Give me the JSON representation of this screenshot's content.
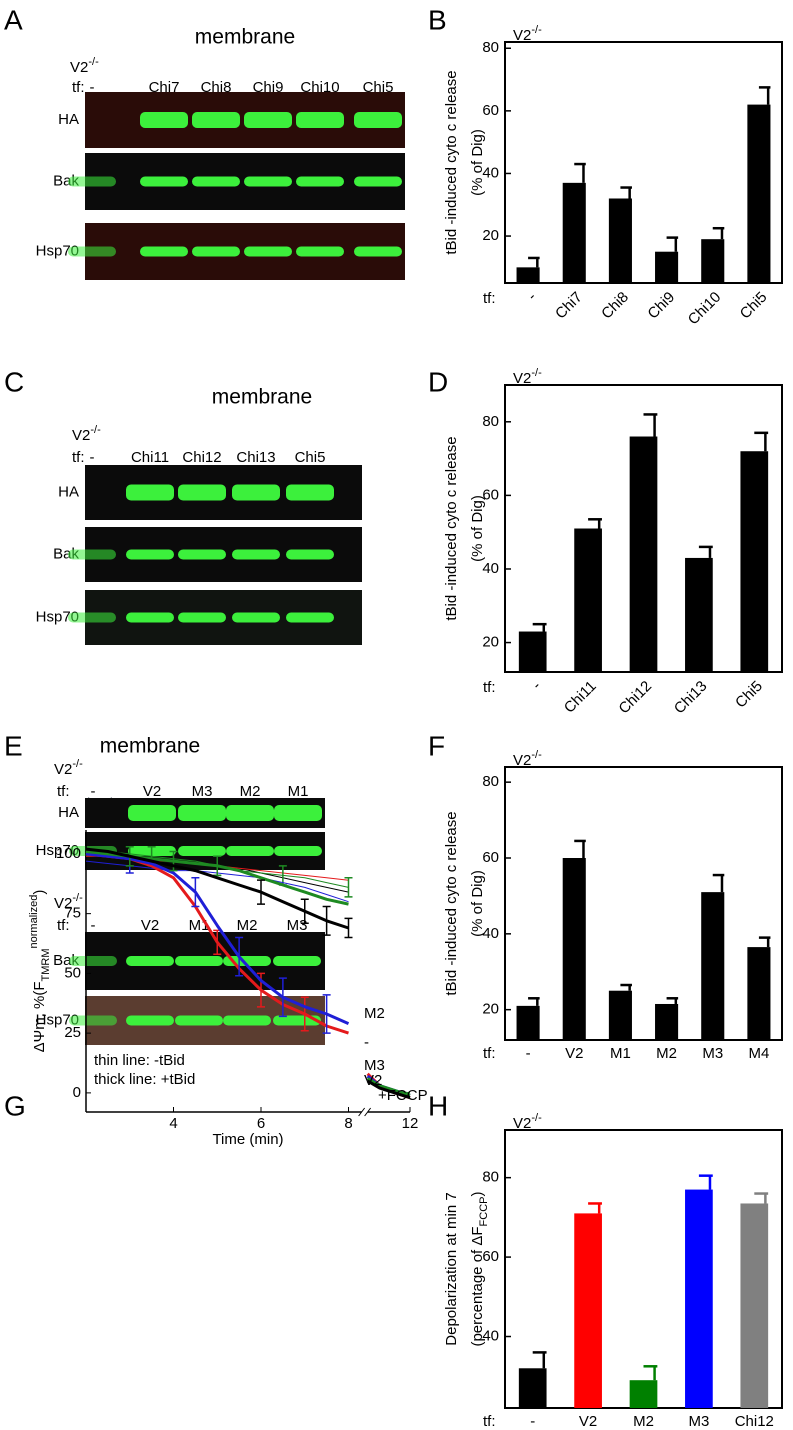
{
  "blots": [
    {
      "label": "A",
      "title": "membrane",
      "groups": [
        {
          "genotype": {
            "base": "V2",
            "sup": "-/-"
          },
          "tf": "tf:",
          "lanes": [
            "-",
            "Chi7",
            "Chi8",
            "Chi9",
            "Chi10",
            "Chi5"
          ],
          "rows": [
            "HA",
            "Bak",
            "Hsp70"
          ]
        }
      ]
    },
    {
      "label": "C",
      "title": "membrane",
      "groups": [
        {
          "genotype": {
            "base": "V2",
            "sup": "-/-"
          },
          "tf": "tf:",
          "lanes": [
            "-",
            "Chi11",
            "Chi12",
            "Chi13",
            "Chi5"
          ],
          "rows": [
            "HA",
            "Bak",
            "Hsp70"
          ]
        }
      ]
    },
    {
      "label": "E",
      "title": "membrane",
      "groups": [
        {
          "genotype": {
            "base": "V2",
            "sup": "-/-"
          },
          "tf": "tf:",
          "lanes": [
            "-",
            "V2",
            "M3",
            "M2",
            "M1"
          ],
          "rows": [
            "HA",
            "Hsp70"
          ]
        },
        {
          "genotype": {
            "base": "V2",
            "sup": "-/-"
          },
          "tf": "tf:",
          "lanes": [
            "-",
            "V2",
            "M1",
            "M2",
            "M3"
          ],
          "rows": [
            "Bak",
            "Hsp70"
          ]
        }
      ]
    }
  ],
  "chart_data": [
    {
      "type": "bar",
      "label": "B",
      "genotype": {
        "base": "V2",
        "sup": "-/-"
      },
      "ylabel": [
        "tBid -induced cyto c release",
        "(% of Dig)"
      ],
      "xlabel": "tf:",
      "xtick_rotation": 45,
      "categories": [
        "-",
        "Chi7",
        "Chi8",
        "Chi9",
        "Chi10",
        "Chi5"
      ],
      "values": [
        10,
        37,
        32,
        15,
        19,
        62
      ],
      "errors": [
        3,
        6,
        3.5,
        4.5,
        3.5,
        5.5
      ],
      "color": "#000000",
      "ylim": [
        5,
        82
      ],
      "yticks": [
        20,
        40,
        60,
        80
      ]
    },
    {
      "type": "bar",
      "label": "D",
      "genotype": {
        "base": "V2",
        "sup": "-/-"
      },
      "ylabel": [
        "tBid -induced cyto c release",
        "(% of Dig)"
      ],
      "xlabel": "tf:",
      "xtick_rotation": 45,
      "categories": [
        "-",
        "Chi11",
        "Chi12",
        "Chi13",
        "Chi5"
      ],
      "values": [
        23,
        51,
        76,
        43,
        72
      ],
      "errors": [
        2,
        2.5,
        6,
        3,
        5
      ],
      "color": "#000000",
      "ylim": [
        12,
        90
      ],
      "yticks": [
        20,
        40,
        60,
        80
      ]
    },
    {
      "type": "bar",
      "label": "F",
      "genotype": {
        "base": "V2",
        "sup": "-/-"
      },
      "ylabel": [
        "tBid -induced cyto c release",
        "(% of Dig)"
      ],
      "xlabel": "tf:",
      "xtick_rotation": 0,
      "categories": [
        "-",
        "V2",
        "M1",
        "M2",
        "M3",
        "M4"
      ],
      "values": [
        21,
        60,
        25,
        21.5,
        51,
        36.5
      ],
      "errors": [
        2,
        4.5,
        1.5,
        1.5,
        4.5,
        2.5
      ],
      "color": "#000000",
      "ylim": [
        12,
        84
      ],
      "yticks": [
        20,
        40,
        60,
        80
      ]
    },
    {
      "type": "bar",
      "label": "H",
      "genotype": {
        "base": "V2",
        "sup": "-/-"
      },
      "ylabel": [
        "Depolarization at min 7",
        [
          "(percentage of ΔF",
          "FCCP",
          ")"
        ]
      ],
      "xlabel": "tf:",
      "xtick_rotation": 0,
      "categories": [
        "-",
        "V2",
        "M2",
        "M3",
        "Chi12"
      ],
      "values": [
        32,
        71,
        29,
        77,
        73.5
      ],
      "errors": [
        4,
        2.5,
        3.5,
        3.5,
        2.5
      ],
      "colors": [
        "#000000",
        "#ff0000",
        "#008000",
        "#0000ff",
        "#808080"
      ],
      "ylim": [
        22,
        92
      ],
      "yticks": [
        40,
        60,
        80
      ]
    },
    {
      "type": "line",
      "label": "G",
      "ylabel": [
        "ΔΨm, %(F",
        "TMRM",
        "normalized",
        ")"
      ],
      "xlabel": "Time (min)",
      "x": [
        2,
        2.5,
        3,
        3.5,
        4,
        4.5,
        5,
        5.5,
        6,
        6.5,
        7,
        7.5,
        8,
        8.8,
        9.2,
        10,
        11,
        12
      ],
      "xlim": [
        2,
        12
      ],
      "axis_break": [
        8.3,
        9.2
      ],
      "xticks": [
        4,
        6,
        8,
        12
      ],
      "ylim": [
        -8,
        110
      ],
      "yticks": [
        0,
        25,
        50,
        75,
        100
      ],
      "series": [
        {
          "color": "#000000",
          "width": "thin",
          "values": [
            101,
            100,
            99,
            98,
            97,
            96,
            95,
            94,
            92,
            90,
            88,
            86,
            84,
            null,
            5,
            2,
            0,
            -1
          ],
          "errors": [
            null,
            null,
            null,
            null,
            null,
            null,
            null,
            null,
            null,
            null,
            null,
            null,
            null,
            null,
            null,
            null,
            null,
            null
          ]
        },
        {
          "color": "#e41a1c",
          "width": "thin",
          "values": [
            99,
            99,
            98,
            97,
            97,
            96,
            95,
            94,
            93,
            92,
            91,
            90,
            89,
            null,
            6,
            3,
            1,
            -1
          ],
          "errors": [
            null,
            null,
            null,
            null,
            null,
            null,
            null,
            null,
            null,
            null,
            null,
            null,
            null,
            null,
            null,
            null,
            null,
            null
          ]
        },
        {
          "color": "#1e8a22",
          "width": "thin",
          "values": [
            102,
            101,
            100,
            99,
            98,
            97,
            95,
            93,
            92,
            91,
            90,
            88,
            86,
            null,
            7,
            3,
            1,
            0
          ],
          "errors": [
            null,
            null,
            null,
            4,
            null,
            null,
            4,
            null,
            null,
            4,
            null,
            null,
            4,
            null,
            null,
            null,
            null,
            null
          ]
        },
        {
          "color": "#1f1fd6",
          "width": "thin",
          "values": [
            97,
            96,
            95,
            94,
            93,
            93,
            92,
            91,
            90,
            88,
            86,
            83,
            80,
            null,
            6,
            2,
            0,
            -1
          ],
          "errors": [
            null,
            null,
            3,
            null,
            null,
            null,
            null,
            null,
            null,
            null,
            null,
            null,
            null,
            null,
            null,
            null,
            null,
            null
          ]
        },
        {
          "color": "#e41a1c",
          "width": "thick",
          "values": [
            100,
            99,
            98,
            95,
            90,
            78,
            63,
            52,
            43,
            37,
            33,
            28,
            25,
            null,
            8,
            3,
            0,
            -2
          ],
          "errors": [
            null,
            null,
            null,
            null,
            null,
            null,
            5,
            null,
            7,
            null,
            7,
            null,
            null,
            null,
            null,
            null,
            null,
            null
          ]
        },
        {
          "color": "#1f1fd6",
          "width": "thick",
          "values": [
            100,
            99,
            98,
            96,
            92,
            84,
            70,
            57,
            47,
            40,
            36,
            33,
            29,
            null,
            7,
            3,
            1,
            -1
          ],
          "errors": [
            null,
            null,
            null,
            null,
            null,
            6,
            null,
            8,
            null,
            8,
            null,
            8,
            null,
            null,
            null,
            null,
            null,
            null
          ]
        },
        {
          "color": "#1e8a22",
          "width": "thick",
          "values": [
            101,
            100,
            99,
            98,
            97,
            96,
            95,
            93,
            90,
            87,
            84,
            81,
            79,
            null,
            6,
            3,
            1,
            -1
          ],
          "errors": [
            null,
            null,
            4,
            null,
            4,
            null,
            4,
            null,
            null,
            null,
            null,
            null,
            null,
            null,
            null,
            null,
            null,
            null
          ]
        },
        {
          "color": "#000000",
          "width": "thick",
          "values": [
            102,
            101,
            99,
            97,
            95,
            93,
            90,
            87,
            84,
            80,
            76,
            72,
            69,
            null,
            5,
            2,
            0,
            -2
          ],
          "errors": [
            null,
            null,
            null,
            null,
            null,
            null,
            null,
            null,
            5,
            null,
            5,
            6,
            4,
            null,
            null,
            null,
            null,
            null
          ]
        }
      ],
      "end_labels": [
        {
          "text": "M2",
          "color": "#1e8a22"
        },
        {
          "text": "-",
          "color": "#000000"
        },
        {
          "text": "M3",
          "color": "#1f1fd6"
        },
        {
          "text": "V2",
          "color": "#e41a1c"
        }
      ],
      "annotations": [
        "thin line: -tBid",
        "thick line: +tBid",
        "+FCCP"
      ]
    }
  ]
}
